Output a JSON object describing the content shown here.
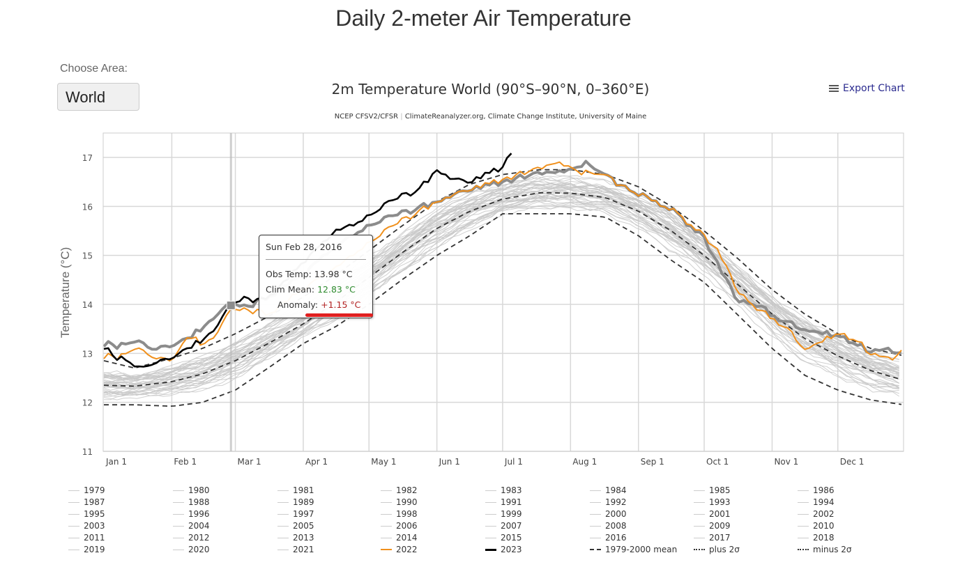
{
  "page": {
    "title": "Daily 2-meter Air Temperature",
    "area_label": "Choose Area:",
    "area_selected": "World"
  },
  "export": {
    "label": "Export Chart",
    "icon": "menu-icon"
  },
  "tooltip": {
    "date": "Sun Feb 28, 2016",
    "obs_label": "Obs Temp:",
    "obs_value": "13.98 °C",
    "clim_label": "Clim Mean:",
    "clim_value": "12.83 °C",
    "anom_label": "Anomaly:",
    "anom_value": "+1.15 °C"
  },
  "colors": {
    "year_2022": "#f0901c",
    "year_2023": "#000000",
    "highlight_2016": "#8c8c8c",
    "other_years": "#c8c8c8",
    "mean": "#333333",
    "anomaly": "#b22222",
    "clim": "#2e8b2e",
    "export_link": "#2b2b8f"
  },
  "chart_data": {
    "type": "line",
    "title": "2m Temperature World (90°S–90°N, 0–360°E)",
    "subtitle_source": "NCEP CFSV2/CFSR",
    "subtitle_credit": "ClimateReanalyzer.org, Climate Change Institute, University of Maine",
    "xlabel": "",
    "ylabel": "Temperature (°C)",
    "ylim": [
      11,
      17.3
    ],
    "yticks": [
      11,
      12,
      13,
      14,
      15,
      16,
      17
    ],
    "xlim_day_of_year": [
      1,
      366
    ],
    "xticks": [
      {
        "label": "Jan 1",
        "day": 1
      },
      {
        "label": "Feb 1",
        "day": 32
      },
      {
        "label": "Mar 1",
        "day": 61
      },
      {
        "label": "Apr 1",
        "day": 92
      },
      {
        "label": "May 1",
        "day": 122
      },
      {
        "label": "Jun 1",
        "day": 153
      },
      {
        "label": "Jul 1",
        "day": 183
      },
      {
        "label": "Aug 1",
        "day": 214
      },
      {
        "label": "Sep 1",
        "day": 245
      },
      {
        "label": "Oct 1",
        "day": 275
      },
      {
        "label": "Nov 1",
        "day": 306
      },
      {
        "label": "Dec 1",
        "day": 336
      }
    ],
    "grid": true,
    "crosshair_day": 59,
    "series": [
      {
        "name": "1979-2000 mean",
        "style": "dashed",
        "x": [
          1,
          15,
          32,
          46,
          61,
          76,
          92,
          107,
          122,
          137,
          153,
          168,
          183,
          200,
          214,
          230,
          245,
          260,
          275,
          290,
          306,
          321,
          336,
          351,
          366
        ],
        "values": [
          12.35,
          12.33,
          12.42,
          12.58,
          12.85,
          13.2,
          13.6,
          14.05,
          14.55,
          15.05,
          15.55,
          15.9,
          16.15,
          16.28,
          16.27,
          16.18,
          15.9,
          15.5,
          15.0,
          14.42,
          13.8,
          13.3,
          12.95,
          12.65,
          12.45
        ]
      },
      {
        "name": "plus 2σ",
        "style": "dashdot",
        "x": [
          1,
          15,
          32,
          46,
          61,
          76,
          92,
          107,
          122,
          137,
          153,
          168,
          183,
          200,
          214,
          230,
          245,
          260,
          275,
          290,
          306,
          321,
          336,
          351,
          366
        ],
        "values": [
          12.85,
          12.7,
          12.9,
          13.1,
          13.4,
          13.75,
          14.15,
          14.6,
          15.1,
          15.6,
          16.1,
          16.45,
          16.65,
          16.75,
          16.75,
          16.65,
          16.4,
          16.0,
          15.5,
          14.95,
          14.3,
          13.8,
          13.4,
          13.1,
          12.95
        ]
      },
      {
        "name": "minus 2σ",
        "style": "dashdot",
        "x": [
          1,
          15,
          32,
          46,
          61,
          76,
          92,
          107,
          122,
          137,
          153,
          168,
          183,
          200,
          214,
          230,
          245,
          260,
          275,
          290,
          306,
          321,
          336,
          351,
          366
        ],
        "values": [
          11.95,
          11.95,
          11.92,
          12.0,
          12.25,
          12.7,
          13.2,
          13.55,
          14.0,
          14.5,
          15.0,
          15.4,
          15.85,
          15.85,
          15.85,
          15.78,
          15.4,
          14.9,
          14.45,
          13.8,
          13.1,
          12.55,
          12.25,
          12.05,
          11.95
        ]
      },
      {
        "name": "2016",
        "style": "highlight",
        "x": [
          1,
          8,
          15,
          22,
          32,
          40,
          46,
          52,
          59,
          66,
          76,
          92,
          107,
          122,
          137,
          153,
          168,
          183,
          200,
          214,
          220,
          230,
          245,
          260,
          275,
          282,
          290,
          300,
          306,
          321,
          336,
          351,
          366
        ],
        "values": [
          13.2,
          13.15,
          13.25,
          13.1,
          13.2,
          13.3,
          13.55,
          13.8,
          13.98,
          13.95,
          14.15,
          14.6,
          15.2,
          15.65,
          15.85,
          16.1,
          16.35,
          16.5,
          16.7,
          16.7,
          16.9,
          16.6,
          16.25,
          15.95,
          15.35,
          14.75,
          14.1,
          14.0,
          13.75,
          13.5,
          13.35,
          13.05,
          13.05
        ]
      },
      {
        "name": "2022",
        "style": "orange",
        "x": [
          1,
          8,
          15,
          22,
          32,
          40,
          46,
          52,
          59,
          66,
          76,
          92,
          107,
          122,
          137,
          153,
          168,
          183,
          200,
          208,
          214,
          230,
          245,
          260,
          275,
          282,
          290,
          300,
          306,
          313,
          321,
          336,
          345,
          351,
          360,
          366
        ],
        "values": [
          12.95,
          12.92,
          13.1,
          12.95,
          12.9,
          13.35,
          13.2,
          13.4,
          13.85,
          13.9,
          13.8,
          14.3,
          14.75,
          15.3,
          15.7,
          16.1,
          16.35,
          16.55,
          16.8,
          16.9,
          16.75,
          16.6,
          16.25,
          15.95,
          15.4,
          15.05,
          14.3,
          13.9,
          13.7,
          13.5,
          13.1,
          13.4,
          13.25,
          13.0,
          12.85,
          13.15
        ]
      },
      {
        "name": "2023",
        "style": "black",
        "x": [
          1,
          5,
          12,
          18,
          25,
          32,
          40,
          46,
          52,
          59,
          66,
          72,
          80,
          92,
          107,
          115,
          122,
          130,
          137,
          145,
          153,
          160,
          168,
          175,
          183,
          188
        ],
        "values": [
          13.15,
          12.95,
          12.85,
          12.65,
          12.85,
          12.95,
          13.1,
          13.3,
          13.55,
          13.95,
          14.15,
          14.05,
          14.3,
          14.85,
          15.5,
          15.65,
          15.85,
          16.05,
          16.2,
          16.35,
          16.75,
          16.55,
          16.5,
          16.65,
          16.8,
          17.22
        ]
      }
    ],
    "other_years_band": {
      "note": "1979–2021 individual years shown as thin light-gray lines within roughly mean ± 2σ"
    },
    "legend": {
      "placement": "bottom",
      "entries": [
        "1979",
        "1980",
        "1981",
        "1982",
        "1983",
        "1984",
        "1985",
        "1986",
        "1987",
        "1988",
        "1989",
        "1990",
        "1991",
        "1992",
        "1993",
        "1994",
        "1995",
        "1996",
        "1997",
        "1998",
        "1999",
        "2000",
        "2001",
        "2002",
        "2003",
        "2004",
        "2005",
        "2006",
        "2007",
        "2008",
        "2009",
        "2010",
        "2011",
        "2012",
        "2013",
        "2014",
        "2015",
        "2016",
        "2017",
        "2018",
        "2019",
        "2020",
        "2021",
        "2022",
        "2023",
        "1979-2000 mean",
        "plus 2σ",
        "minus 2σ"
      ]
    }
  }
}
